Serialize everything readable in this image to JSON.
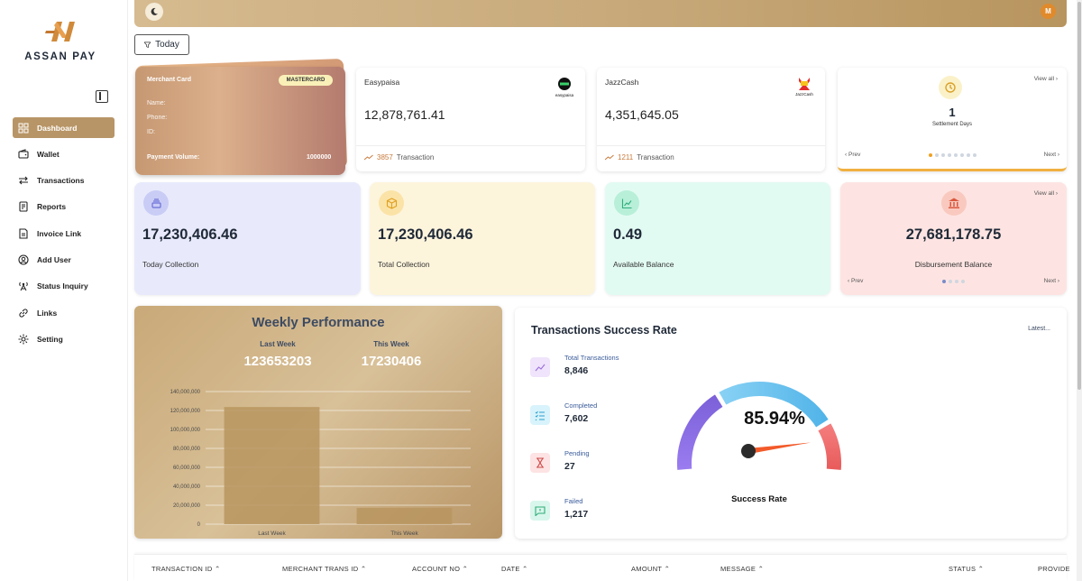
{
  "brand": {
    "name": "ASSAN PAY"
  },
  "sidebar": {
    "items": [
      {
        "label": "Dashboard",
        "icon": "grid-icon",
        "active": true
      },
      {
        "label": "Wallet",
        "icon": "wallet-icon"
      },
      {
        "label": "Transactions",
        "icon": "arrows-icon"
      },
      {
        "label": "Reports",
        "icon": "report-icon"
      },
      {
        "label": "Invoice Link",
        "icon": "invoice-icon"
      },
      {
        "label": "Add User",
        "icon": "user-icon"
      },
      {
        "label": "Status Inquiry",
        "icon": "tower-icon"
      },
      {
        "label": "Links",
        "icon": "link-icon"
      },
      {
        "label": "Setting",
        "icon": "gear-icon"
      }
    ]
  },
  "topbar": {
    "avatar_initial": "M"
  },
  "filter": {
    "label": "Today"
  },
  "merchant_card": {
    "title": "Merchant Card",
    "badge": "MASTERCARD",
    "fields": [
      "Name:",
      "Phone:",
      "ID:"
    ],
    "volume_label": "Payment Volume:",
    "volume_value": "1000000"
  },
  "wallets": [
    {
      "name": "Easypaisa",
      "amount": "12,878,761.41",
      "tx_count": "3857",
      "tx_label": "Transaction",
      "logo_text": "easypaisa"
    },
    {
      "name": "JazzCash",
      "amount": "4,351,645.05",
      "tx_count": "1211",
      "tx_label": "Transaction",
      "logo_text": "JazzCash"
    }
  ],
  "settlement": {
    "view_all": "View all",
    "value": "1",
    "label": "Settlement Days",
    "prev": "Prev",
    "next": "Next"
  },
  "stats": [
    {
      "value": "17,230,406.46",
      "label": "Today Collection",
      "bg": "#e8eafc",
      "icon_bg": "#c9ccf5",
      "icon_color": "#6b6fd8"
    },
    {
      "value": "17,230,406.46",
      "label": "Total Collection",
      "bg": "#fdf4dc",
      "icon_bg": "#fbe3a7",
      "icon_color": "#e0a020"
    },
    {
      "value": "0.49",
      "label": "Available Balance",
      "bg": "#e2fbf2",
      "icon_bg": "#b8efd9",
      "icon_color": "#2fae79"
    }
  ],
  "disbursement": {
    "value": "27,681,178.75",
    "label": "Disbursement Balance",
    "view_all": "View all",
    "prev": "Prev",
    "next": "Next"
  },
  "weekly": {
    "title": "Weekly Performance",
    "last_week_label": "Last Week",
    "last_week_value": "123653203",
    "this_week_label": "This Week",
    "this_week_value": "17230406"
  },
  "chart_data": {
    "type": "bar",
    "categories": [
      "Last Week",
      "This Week"
    ],
    "values": [
      123653203,
      17230406
    ],
    "ylim": [
      0,
      140000000
    ],
    "yticks": [
      "0",
      "20,000,000",
      "40,000,000",
      "60,000,000",
      "80,000,000",
      "100,000,000",
      "120,000,000",
      "140,000,000"
    ],
    "grid": true,
    "bar_color": "#b8955f"
  },
  "success": {
    "title": "Transactions Success Rate",
    "latest": "Latest...",
    "rows": [
      {
        "label": "Total Transactions",
        "value": "8,846",
        "icon": "trend-icon",
        "bg": "#efe4fb",
        "color": "#9b6ddb"
      },
      {
        "label": "Completed",
        "value": "7,602",
        "icon": "checklist-icon",
        "bg": "#d8f3fb",
        "color": "#2b9fcf"
      },
      {
        "label": "Pending",
        "value": "27",
        "icon": "hourglass-icon",
        "bg": "#fde3e3",
        "color": "#d04848"
      },
      {
        "label": "Failed",
        "value": "1,217",
        "icon": "message-alert-icon",
        "bg": "#d9f6ec",
        "color": "#2fae79"
      }
    ],
    "percent": "85.94%",
    "rate": 0.8594,
    "gauge_label": "Success Rate"
  },
  "table": {
    "columns": [
      "TRANSACTION ID",
      "MERCHANT TRANS ID",
      "ACCOUNT NO",
      "DATE",
      "AMOUNT",
      "MESSAGE",
      "STATUS",
      "PROVIDE"
    ]
  }
}
